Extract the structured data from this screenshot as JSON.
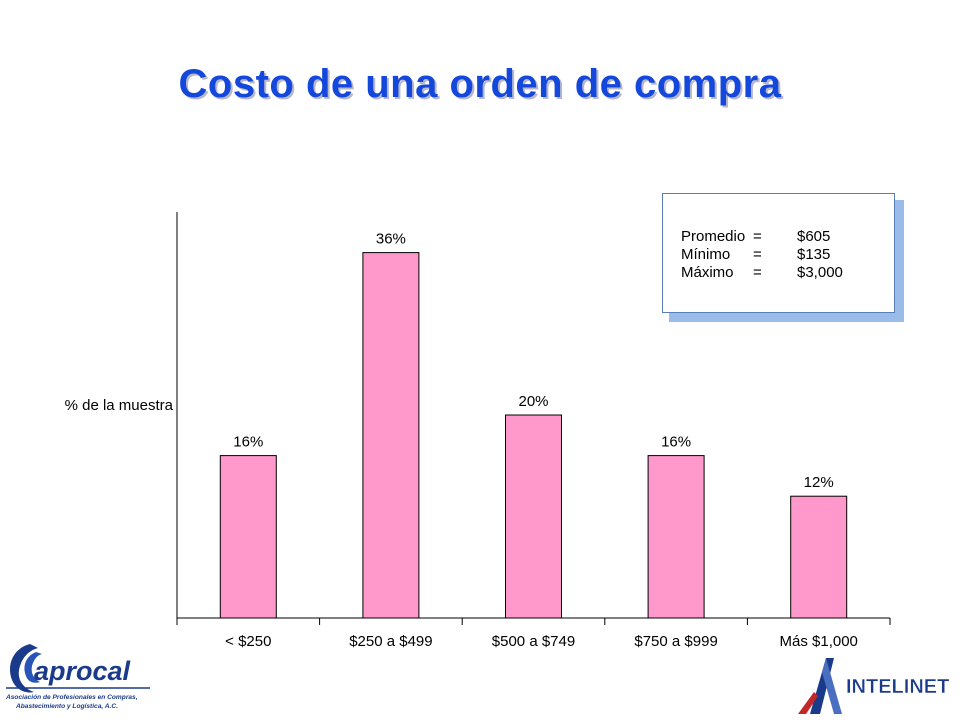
{
  "slide": {
    "title": "Costo de una orden de compra"
  },
  "stats": {
    "rows": [
      {
        "label": "Promedio",
        "sep": "=",
        "value": "$605"
      },
      {
        "label": "Mínimo",
        "sep": "=",
        "value": "$135"
      },
      {
        "label": "Máximo",
        "sep": "=",
        "value": "$3,000"
      }
    ]
  },
  "chart_data": {
    "type": "bar",
    "title": "",
    "xlabel": "",
    "ylabel": "% de la muestra",
    "categories": [
      "< $250",
      "$250 a $499",
      "$500 a $749",
      "$750 a $999",
      "Más $1,000"
    ],
    "values": [
      16,
      36,
      20,
      16,
      12
    ],
    "data_labels": [
      "16%",
      "36%",
      "20%",
      "16%",
      "12%"
    ],
    "unit": "%",
    "ylim": [
      0,
      40
    ],
    "grid": false,
    "legend": "none",
    "bar_color": "#ff99cc",
    "bar_edge_color": "#000000"
  },
  "logos": {
    "aprocal": {
      "name": "aprocal",
      "tagline_1": "Asociación de Profesionales en Compras,",
      "tagline_2": "Abastecimiento y Logística, A.C."
    },
    "intelinet": {
      "name": "INTELINET"
    }
  },
  "colors": {
    "title": "#1448dc",
    "logo_blue": "#1a3a8a",
    "logo_red": "#c0282a"
  }
}
